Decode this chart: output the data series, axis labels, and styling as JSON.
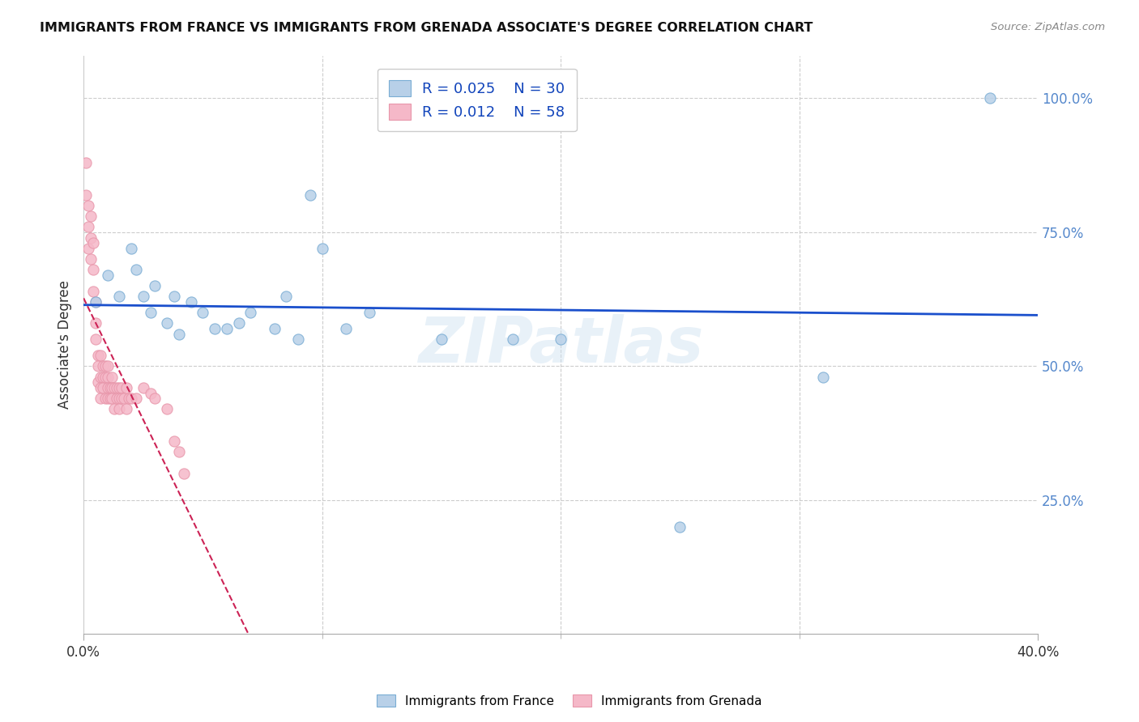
{
  "title": "IMMIGRANTS FROM FRANCE VS IMMIGRANTS FROM GRENADA ASSOCIATE'S DEGREE CORRELATION CHART",
  "source": "Source: ZipAtlas.com",
  "ylabel": "Associate's Degree",
  "legend_france": "Immigrants from France",
  "legend_grenada": "Immigrants from Grenada",
  "R_france": 0.025,
  "N_france": 30,
  "R_grenada": 0.012,
  "N_grenada": 58,
  "xlim": [
    0.0,
    0.4
  ],
  "ylim": [
    0.0,
    1.08
  ],
  "xticks": [
    0.0,
    0.4
  ],
  "xtick_labels": [
    "0.0%",
    "40.0%"
  ],
  "yticks": [
    0.25,
    0.5,
    0.75,
    1.0
  ],
  "ytick_labels": [
    "25.0%",
    "50.0%",
    "75.0%",
    "100.0%"
  ],
  "france_x": [
    0.005,
    0.01,
    0.015,
    0.02,
    0.022,
    0.025,
    0.028,
    0.03,
    0.035,
    0.038,
    0.04,
    0.045,
    0.05,
    0.055,
    0.06,
    0.065,
    0.07,
    0.08,
    0.085,
    0.09,
    0.095,
    0.1,
    0.11,
    0.12,
    0.15,
    0.18,
    0.2,
    0.25,
    0.31,
    0.38
  ],
  "france_y": [
    0.62,
    0.67,
    0.63,
    0.72,
    0.68,
    0.63,
    0.6,
    0.65,
    0.58,
    0.63,
    0.56,
    0.62,
    0.6,
    0.57,
    0.57,
    0.58,
    0.6,
    0.57,
    0.63,
    0.55,
    0.82,
    0.72,
    0.57,
    0.6,
    0.55,
    0.55,
    0.55,
    0.2,
    0.48,
    1.0
  ],
  "grenada_x": [
    0.001,
    0.001,
    0.002,
    0.002,
    0.002,
    0.003,
    0.003,
    0.003,
    0.004,
    0.004,
    0.004,
    0.005,
    0.005,
    0.005,
    0.006,
    0.006,
    0.006,
    0.007,
    0.007,
    0.007,
    0.007,
    0.008,
    0.008,
    0.008,
    0.009,
    0.009,
    0.009,
    0.01,
    0.01,
    0.01,
    0.01,
    0.011,
    0.011,
    0.012,
    0.012,
    0.012,
    0.013,
    0.013,
    0.014,
    0.014,
    0.015,
    0.015,
    0.015,
    0.016,
    0.016,
    0.017,
    0.018,
    0.018,
    0.019,
    0.02,
    0.022,
    0.025,
    0.028,
    0.03,
    0.035,
    0.038,
    0.04,
    0.042
  ],
  "grenada_y": [
    0.88,
    0.82,
    0.8,
    0.76,
    0.72,
    0.78,
    0.74,
    0.7,
    0.73,
    0.68,
    0.64,
    0.62,
    0.58,
    0.55,
    0.52,
    0.5,
    0.47,
    0.52,
    0.48,
    0.46,
    0.44,
    0.5,
    0.48,
    0.46,
    0.5,
    0.48,
    0.44,
    0.5,
    0.48,
    0.46,
    0.44,
    0.46,
    0.44,
    0.48,
    0.46,
    0.44,
    0.46,
    0.42,
    0.46,
    0.44,
    0.46,
    0.44,
    0.42,
    0.46,
    0.44,
    0.44,
    0.46,
    0.42,
    0.44,
    0.44,
    0.44,
    0.46,
    0.45,
    0.44,
    0.42,
    0.36,
    0.34,
    0.3
  ],
  "france_color": "#b8d0e8",
  "grenada_color": "#f5b8c8",
  "france_edge": "#7aadd4",
  "grenada_edge": "#e896aa",
  "trend_france_color": "#1a4fcc",
  "trend_grenada_color": "#cc2255",
  "watermark": "ZIPatlas",
  "background_color": "#ffffff",
  "dot_size": 90,
  "grid_minor_ticks": [
    0.1,
    0.2,
    0.3
  ]
}
